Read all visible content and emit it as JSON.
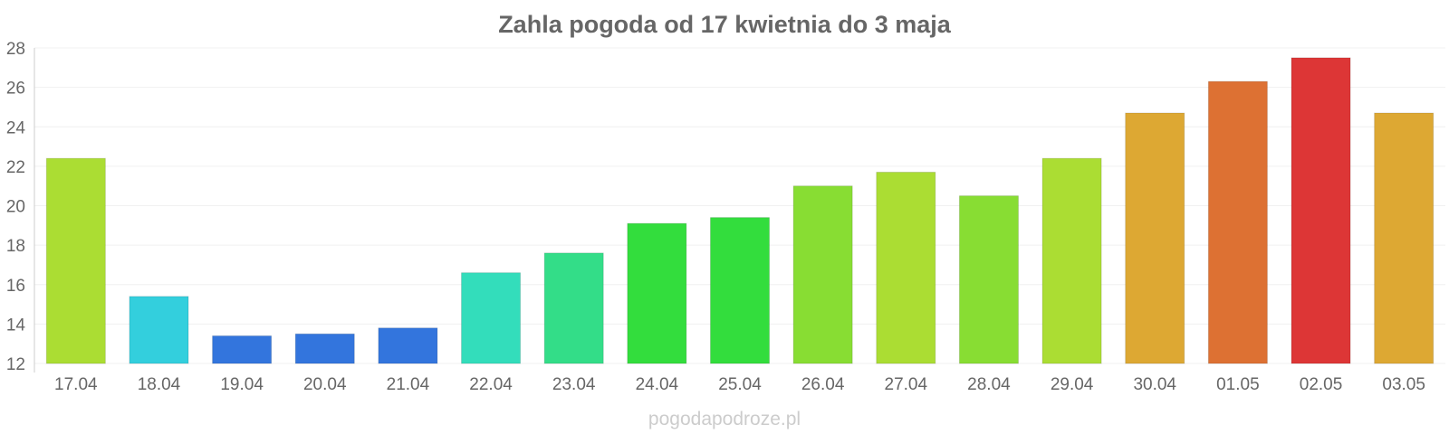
{
  "chart_data": {
    "type": "bar",
    "title": "Zahla pogoda od 17 kwietnia do 3 maja",
    "categories": [
      "17.04",
      "18.04",
      "19.04",
      "20.04",
      "21.04",
      "22.04",
      "23.04",
      "24.04",
      "25.04",
      "26.04",
      "27.04",
      "28.04",
      "29.04",
      "30.04",
      "01.05",
      "02.05",
      "03.05"
    ],
    "values": [
      22.4,
      15.4,
      13.4,
      13.5,
      13.8,
      16.6,
      17.6,
      19.1,
      19.4,
      21.0,
      21.7,
      20.5,
      22.4,
      24.7,
      26.3,
      27.5,
      24.7
    ],
    "colors": [
      "#abdd33",
      "#33cfdd",
      "#3375dd",
      "#3375dd",
      "#3375dd",
      "#33ddbb",
      "#33dd88",
      "#33dd3d",
      "#33dd3d",
      "#88dd33",
      "#abdd33",
      "#88dd33",
      "#abdd33",
      "#dda833",
      "#dd7133",
      "#dd3636",
      "#dda833"
    ],
    "ylim": [
      12,
      28
    ],
    "yticks": [
      12,
      14,
      16,
      18,
      20,
      22,
      24,
      26,
      28
    ],
    "grid": true,
    "xlabel": "",
    "ylabel": ""
  },
  "watermark": "pogodapodroze.pl"
}
